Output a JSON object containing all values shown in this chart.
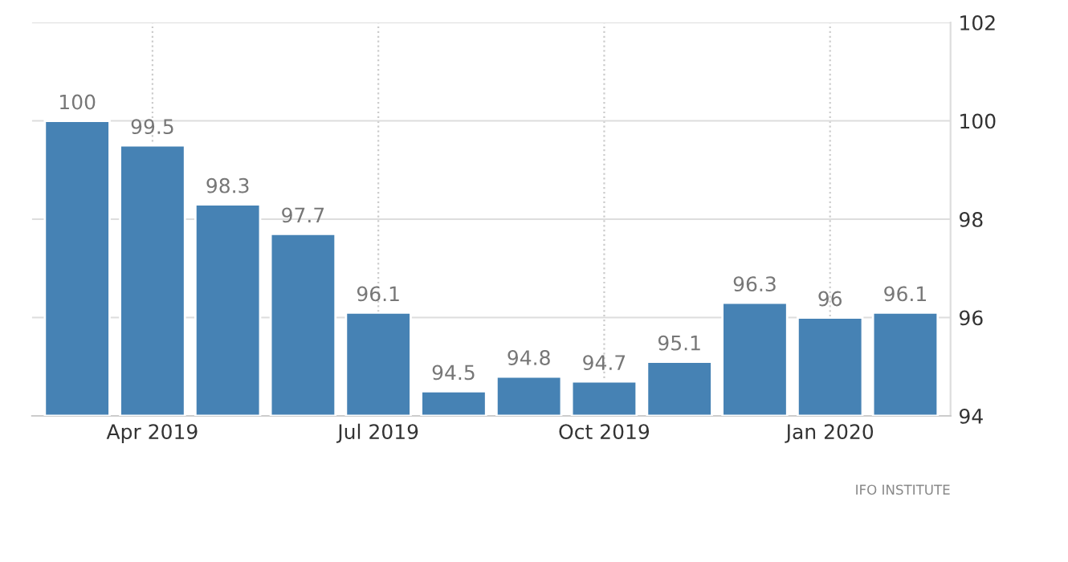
{
  "chart_data": {
    "type": "bar",
    "categories": [
      null,
      "Apr 2019",
      null,
      null,
      "Jul 2019",
      null,
      null,
      "Oct 2019",
      null,
      null,
      "Jan 2020",
      null
    ],
    "values": [
      100,
      99.5,
      98.3,
      97.7,
      96.1,
      94.5,
      94.8,
      94.7,
      95.1,
      96.3,
      96,
      96.1
    ],
    "color": "#4682b4",
    "ylim": [
      94,
      102
    ],
    "yticks": [
      94,
      96,
      98,
      100,
      102
    ],
    "grid": true,
    "data_labels": true,
    "annotations": [
      "IFO INSTITUTE"
    ]
  }
}
